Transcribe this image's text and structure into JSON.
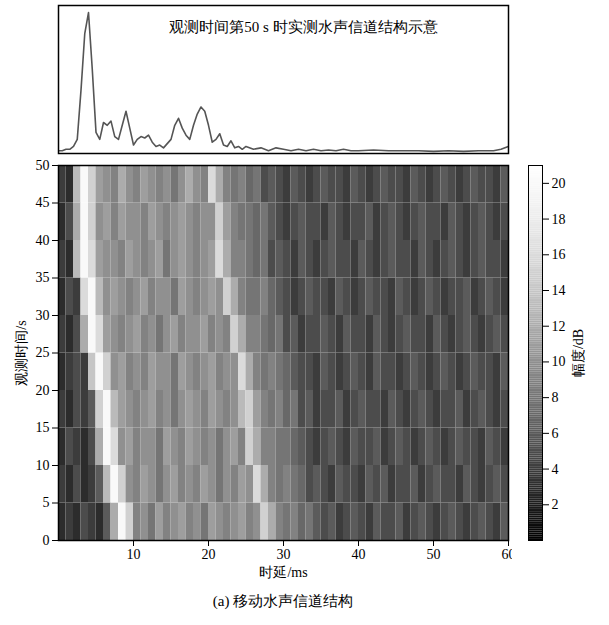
{
  "chart_data": [
    {
      "type": "line",
      "title": "观测时间第50 s 时实测水声信道结构示意",
      "x": [
        0,
        0.5,
        1,
        1.5,
        2,
        2.5,
        3,
        3.5,
        4,
        4.5,
        5,
        5.5,
        6,
        6.5,
        7,
        7.5,
        8,
        8.5,
        9,
        9.5,
        10,
        10.5,
        11,
        11.5,
        12,
        12.5,
        13,
        13.5,
        14,
        14.5,
        15,
        15.5,
        16,
        16.5,
        17,
        17.5,
        18,
        18.5,
        19,
        19.5,
        20,
        20.5,
        21,
        21.5,
        22,
        22.5,
        23,
        23.5,
        24,
        24.5,
        25,
        26,
        27,
        28,
        29,
        30,
        31,
        32,
        33,
        34,
        35,
        36,
        37,
        38,
        39,
        40,
        42,
        44,
        46,
        48,
        50,
        52,
        54,
        56,
        58,
        59,
        60
      ],
      "values": [
        0.02,
        0.02,
        0.03,
        0.03,
        0.05,
        0.1,
        0.45,
        0.85,
        1.0,
        0.6,
        0.15,
        0.1,
        0.22,
        0.2,
        0.23,
        0.12,
        0.1,
        0.2,
        0.3,
        0.18,
        0.06,
        0.1,
        0.12,
        0.11,
        0.13,
        0.08,
        0.05,
        0.06,
        0.04,
        0.07,
        0.1,
        0.2,
        0.25,
        0.18,
        0.13,
        0.1,
        0.2,
        0.28,
        0.33,
        0.3,
        0.2,
        0.08,
        0.1,
        0.14,
        0.06,
        0.05,
        0.09,
        0.04,
        0.05,
        0.03,
        0.05,
        0.03,
        0.04,
        0.02,
        0.04,
        0.03,
        0.02,
        0.03,
        0.02,
        0.03,
        0.02,
        0.025,
        0.02,
        0.03,
        0.02,
        0.02,
        0.025,
        0.02,
        0.02,
        0.02,
        0.015,
        0.02,
        0.015,
        0.02,
        0.02,
        0.03,
        0.05
      ],
      "xlim": [
        0,
        60
      ],
      "ylim": [
        0,
        1.05
      ],
      "tick_labels": false,
      "color": "#555555"
    },
    {
      "type": "heatmap",
      "x_label": "时延/ms",
      "y_label": "观测时间/s",
      "caption": "(a) 移动水声信道结构",
      "xlim": [
        0,
        60
      ],
      "xticks": [
        10,
        20,
        30,
        40,
        50,
        60
      ],
      "ylim": [
        0,
        50
      ],
      "yticks": [
        0,
        5,
        10,
        15,
        20,
        25,
        30,
        35,
        40,
        45,
        50
      ],
      "delay_edges": [
        0,
        1,
        2,
        3,
        4,
        5,
        6,
        7,
        8,
        9,
        10,
        11,
        12,
        13,
        14,
        15,
        16,
        17,
        18,
        19,
        20,
        21,
        22,
        23,
        24,
        25,
        26,
        27,
        28,
        29,
        30,
        31,
        32,
        33,
        34,
        35,
        36,
        37,
        38,
        39,
        40,
        41,
        42,
        43,
        44,
        45,
        46,
        47,
        48,
        49,
        50,
        51,
        52,
        53,
        54,
        55,
        56,
        57,
        58,
        59,
        60
      ],
      "time_edges": [
        0,
        5,
        10,
        15,
        20,
        25,
        30,
        35,
        40,
        45,
        50
      ],
      "cells": [
        [
          3,
          4,
          3,
          5,
          4,
          3,
          6,
          12,
          20,
          15,
          9,
          10,
          8,
          11,
          9,
          10,
          11,
          9,
          10,
          8,
          11,
          10,
          9,
          10,
          11,
          9,
          10,
          15,
          12,
          9,
          8,
          9,
          7,
          8,
          6,
          5,
          6,
          4,
          5,
          6,
          5,
          4,
          6,
          5,
          5,
          6,
          4,
          5,
          6,
          5,
          4,
          5,
          6,
          5,
          4,
          5,
          6,
          5,
          4,
          6
        ],
        [
          4,
          3,
          5,
          3,
          4,
          6,
          13,
          20,
          15,
          10,
          9,
          11,
          10,
          8,
          10,
          11,
          9,
          10,
          9,
          11,
          10,
          8,
          10,
          9,
          11,
          10,
          16,
          12,
          9,
          8,
          9,
          8,
          7,
          5,
          6,
          5,
          4,
          6,
          5,
          5,
          4,
          6,
          5,
          6,
          4,
          5,
          5,
          6,
          4,
          5,
          6,
          5,
          5,
          4,
          6,
          5,
          4,
          5,
          6,
          5
        ],
        [
          3,
          5,
          4,
          3,
          5,
          12,
          20,
          16,
          10,
          11,
          9,
          10,
          10,
          8,
          11,
          10,
          9,
          11,
          10,
          9,
          10,
          8,
          10,
          11,
          9,
          15,
          12,
          9,
          9,
          8,
          8,
          7,
          6,
          5,
          4,
          5,
          6,
          5,
          4,
          6,
          5,
          5,
          6,
          4,
          5,
          6,
          5,
          4,
          5,
          6,
          5,
          4,
          5,
          6,
          5,
          5,
          4,
          6,
          5,
          4
        ],
        [
          4,
          3,
          5,
          4,
          6,
          15,
          20,
          13,
          11,
          10,
          9,
          10,
          11,
          9,
          10,
          8,
          10,
          11,
          10,
          9,
          11,
          10,
          9,
          10,
          13,
          15,
          11,
          9,
          8,
          9,
          7,
          8,
          5,
          6,
          4,
          5,
          5,
          6,
          4,
          5,
          6,
          5,
          5,
          4,
          6,
          5,
          4,
          5,
          6,
          5,
          4,
          5,
          5,
          6,
          4,
          5,
          6,
          5,
          4,
          5
        ],
        [
          3,
          4,
          5,
          4,
          14,
          20,
          15,
          10,
          11,
          9,
          10,
          9,
          11,
          10,
          10,
          8,
          11,
          10,
          9,
          10,
          11,
          9,
          10,
          10,
          16,
          12,
          9,
          8,
          9,
          8,
          7,
          6,
          5,
          5,
          4,
          6,
          5,
          4,
          5,
          6,
          5,
          4,
          6,
          5,
          5,
          4,
          5,
          6,
          5,
          4,
          5,
          6,
          5,
          4,
          5,
          6,
          5,
          5,
          4,
          6
        ],
        [
          4,
          3,
          5,
          12,
          20,
          16,
          11,
          10,
          9,
          10,
          11,
          9,
          10,
          8,
          10,
          11,
          9,
          10,
          10,
          11,
          9,
          10,
          9,
          15,
          12,
          9,
          9,
          8,
          7,
          8,
          5,
          6,
          4,
          5,
          5,
          6,
          5,
          4,
          6,
          5,
          5,
          4,
          6,
          5,
          4,
          5,
          6,
          5,
          5,
          4,
          6,
          5,
          4,
          5,
          6,
          5,
          4,
          5,
          6,
          5
        ],
        [
          3,
          5,
          4,
          16,
          20,
          13,
          10,
          11,
          10,
          9,
          10,
          11,
          9,
          10,
          10,
          8,
          11,
          10,
          9,
          10,
          11,
          10,
          15,
          12,
          9,
          8,
          8,
          9,
          7,
          6,
          5,
          4,
          5,
          6,
          5,
          5,
          4,
          6,
          5,
          4,
          5,
          6,
          5,
          5,
          4,
          6,
          5,
          4,
          5,
          6,
          5,
          4,
          5,
          5,
          6,
          4,
          5,
          6,
          5,
          4
        ],
        [
          4,
          3,
          13,
          20,
          16,
          11,
          10,
          10,
          9,
          11,
          10,
          9,
          10,
          11,
          8,
          10,
          11,
          10,
          9,
          10,
          11,
          16,
          12,
          9,
          9,
          8,
          7,
          8,
          5,
          6,
          5,
          4,
          6,
          5,
          4,
          5,
          6,
          5,
          5,
          4,
          6,
          5,
          4,
          5,
          6,
          5,
          5,
          4,
          6,
          5,
          4,
          5,
          6,
          5,
          4,
          5,
          6,
          5,
          5,
          4
        ],
        [
          3,
          5,
          12,
          20,
          15,
          10,
          11,
          9,
          11,
          10,
          10,
          9,
          11,
          10,
          9,
          10,
          11,
          10,
          9,
          10,
          10,
          15,
          11,
          9,
          8,
          8,
          7,
          8,
          6,
          5,
          4,
          5,
          6,
          5,
          5,
          4,
          6,
          5,
          4,
          5,
          5,
          6,
          4,
          5,
          6,
          5,
          4,
          5,
          6,
          5,
          5,
          4,
          6,
          5,
          4,
          5,
          6,
          5,
          4,
          5
        ],
        [
          4,
          3,
          13,
          20,
          15,
          11,
          10,
          9,
          12,
          10,
          9,
          11,
          10,
          9,
          10,
          8,
          10,
          12,
          10,
          9,
          16,
          12,
          9,
          8,
          9,
          7,
          8,
          5,
          6,
          5,
          4,
          6,
          5,
          4,
          5,
          6,
          5,
          5,
          4,
          6,
          5,
          4,
          5,
          6,
          5,
          5,
          4,
          6,
          5,
          4,
          5,
          6,
          5,
          4,
          5,
          6,
          5,
          5,
          4,
          6
        ]
      ],
      "colorbar": {
        "label": "幅度/dB",
        "range": [
          0,
          21
        ],
        "ticks": [
          2,
          4,
          6,
          8,
          10,
          12,
          14,
          16,
          18,
          20
        ]
      }
    }
  ]
}
